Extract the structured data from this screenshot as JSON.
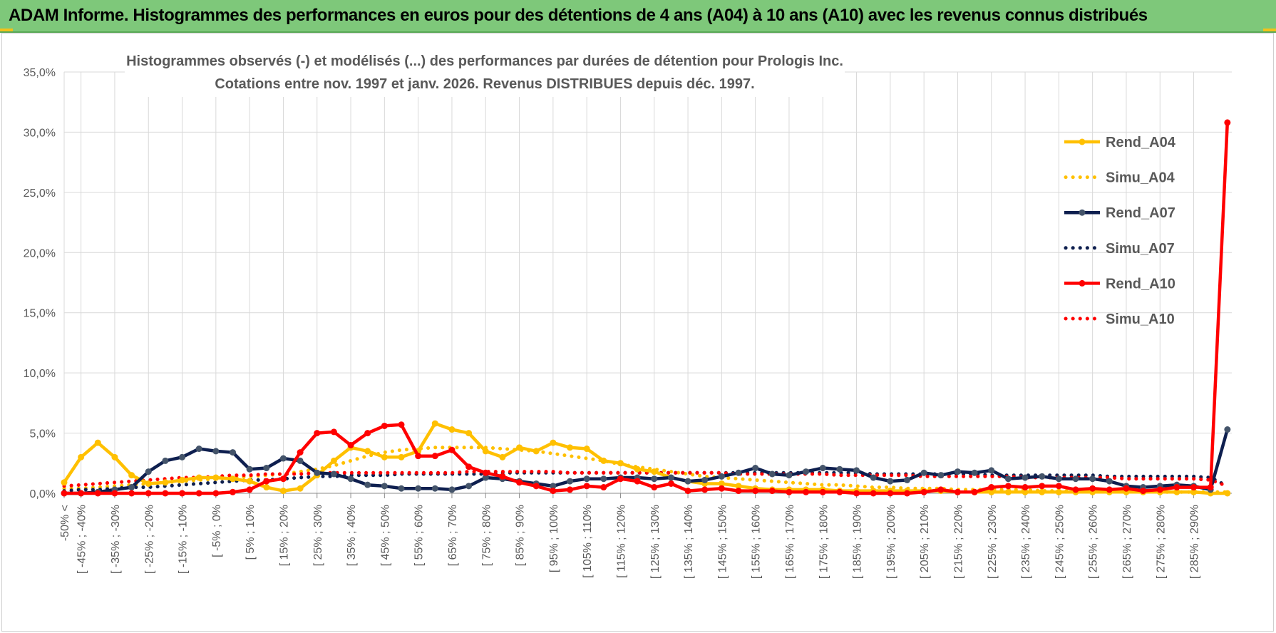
{
  "banner": {
    "title": "ADAM Informe. Histogrammes des performances en euros pour des détentions de 4 ans (A04) à 10 ans (A10) avec les revenus connus distribués"
  },
  "chart_data": {
    "type": "line",
    "title": "Histogrammes observés (-) et modélisés (...) des performances par durées de détention pour Prologis Inc.",
    "subtitle": "Cotations entre nov. 1997 et janv. 2026. Revenus DISTRIBUES depuis déc. 1997.",
    "ylim": [
      0,
      35
    ],
    "yticks": [
      "0,0%",
      "5,0%",
      "10,0%",
      "15,0%",
      "20,0%",
      "25,0%",
      "30,0%",
      "35,0%"
    ],
    "grid": true,
    "legend_position": "right",
    "category_labels": [
      "-50% <",
      "[ -45% ; -40%",
      "[ -35% ; -30%",
      "[ -25% ; -20%",
      "[ -15% ; -10%",
      "[ -5% ; 0%",
      "[ 5% ; 10%",
      "[ 15% ; 20%",
      "[ 25% ; 30%",
      "[ 35% ; 40%",
      "[ 45% ; 50%",
      "[ 55% ; 60%",
      "[ 65% ; 70%",
      "[ 75% ; 80%",
      "[ 85% ; 90%",
      "[ 95% ; 100%",
      "[ 105% ; 110%",
      "[ 115% ; 120%",
      "[ 125% ; 130%",
      "[ 135% ; 140%",
      "[ 145% ; 150%",
      "[ 155% ; 160%",
      "[ 165% ; 170%",
      "[ 175% ; 180%",
      "[ 185% ; 190%",
      "[ 195% ; 200%",
      "[ 205% ; 210%",
      "[ 215% ; 220%",
      "[ 225% ; 230%",
      "[ 235% ; 240%",
      "[ 245% ; 250%",
      "[ 255% ; 260%",
      "[ 265% ; 270%",
      "[ 275% ; 280%",
      "[ 285% ; 290%"
    ],
    "series": [
      {
        "name": "Rend_A04",
        "style": "solid",
        "color": "#ffc000",
        "values": [
          0.9,
          3.0,
          4.2,
          3.0,
          1.5,
          0.8,
          0.9,
          1.1,
          1.3,
          1.3,
          1.2,
          1.0,
          0.5,
          0.2,
          0.4,
          1.5,
          2.7,
          3.8,
          3.5,
          3.0,
          3.0,
          3.5,
          5.8,
          5.3,
          5.0,
          3.5,
          3.0,
          3.8,
          3.5,
          4.2,
          3.8,
          3.7,
          2.7,
          2.5,
          2.0,
          1.8,
          1.3,
          1.0,
          0.8,
          0.8,
          0.6,
          0.4,
          0.3,
          0.3,
          0.3,
          0.3,
          0.2,
          0.2,
          0.2,
          0.2,
          0.2,
          0.2,
          0.2,
          0.1,
          0.1,
          0.1,
          0.1,
          0.1,
          0.1,
          0.1,
          0.1,
          0.1,
          0.1,
          0.1,
          0.1,
          0.1,
          0.1,
          0.1,
          0.0,
          0.0
        ]
      },
      {
        "name": "Simu_A04",
        "style": "dotted",
        "color": "#ffc000",
        "values": [
          0.4,
          0.4,
          0.5,
          0.6,
          0.7,
          0.8,
          0.9,
          1.0,
          1.1,
          1.2,
          1.3,
          1.4,
          1.5,
          1.6,
          1.8,
          2.0,
          2.3,
          2.7,
          3.1,
          3.4,
          3.6,
          3.7,
          3.8,
          3.8,
          3.8,
          3.8,
          3.7,
          3.6,
          3.5,
          3.3,
          3.1,
          2.9,
          2.7,
          2.4,
          2.2,
          2.0,
          1.8,
          1.6,
          1.4,
          1.3,
          1.2,
          1.1,
          1.0,
          0.9,
          0.8,
          0.7,
          0.7,
          0.6,
          0.5,
          0.5,
          0.4,
          0.4,
          0.4,
          0.3,
          0.3,
          0.3,
          0.3,
          0.3,
          0.2,
          0.2,
          0.2,
          0.2,
          0.2,
          0.2,
          0.2,
          0.1,
          0.1,
          0.1,
          0.1,
          0.1
        ]
      },
      {
        "name": "Rend_A07",
        "style": "solid",
        "color": "#0e1f4f",
        "values": [
          0.0,
          0.0,
          0.1,
          0.3,
          0.5,
          1.8,
          2.7,
          3.0,
          3.7,
          3.5,
          3.4,
          2.0,
          2.1,
          2.9,
          2.7,
          1.7,
          1.6,
          1.2,
          0.7,
          0.6,
          0.4,
          0.4,
          0.4,
          0.3,
          0.6,
          1.3,
          1.2,
          1.0,
          0.8,
          0.6,
          1.0,
          1.2,
          1.2,
          1.3,
          1.3,
          1.2,
          1.3,
          1.0,
          1.1,
          1.4,
          1.7,
          2.1,
          1.6,
          1.5,
          1.8,
          2.1,
          2.0,
          1.9,
          1.3,
          1.0,
          1.1,
          1.7,
          1.5,
          1.8,
          1.7,
          1.9,
          1.2,
          1.3,
          1.4,
          1.2,
          1.2,
          1.2,
          1.0,
          0.6,
          0.5,
          0.6,
          0.7,
          0.6,
          0.3,
          5.3
        ]
      },
      {
        "name": "Simu_A07",
        "style": "dotted",
        "color": "#0e1f4f",
        "values": [
          0.2,
          0.3,
          0.3,
          0.4,
          0.5,
          0.5,
          0.6,
          0.7,
          0.8,
          0.9,
          1.0,
          1.1,
          1.1,
          1.2,
          1.3,
          1.4,
          1.4,
          1.5,
          1.5,
          1.5,
          1.6,
          1.6,
          1.6,
          1.6,
          1.6,
          1.6,
          1.7,
          1.7,
          1.7,
          1.7,
          1.7,
          1.7,
          1.7,
          1.7,
          1.7,
          1.7,
          1.7,
          1.7,
          1.7,
          1.7,
          1.7,
          1.7,
          1.7,
          1.7,
          1.7,
          1.7,
          1.7,
          1.7,
          1.6,
          1.6,
          1.6,
          1.6,
          1.6,
          1.6,
          1.6,
          1.5,
          1.5,
          1.5,
          1.5,
          1.5,
          1.5,
          1.5,
          1.4,
          1.4,
          1.4,
          1.4,
          1.4,
          1.4,
          1.3,
          0.6
        ]
      },
      {
        "name": "Rend_A10",
        "style": "solid",
        "color": "#ff0000",
        "values": [
          0.0,
          0.0,
          0.0,
          0.0,
          0.0,
          0.0,
          0.0,
          0.0,
          0.0,
          0.0,
          0.1,
          0.3,
          1.0,
          1.2,
          3.4,
          5.0,
          5.1,
          4.0,
          5.0,
          5.6,
          5.7,
          3.1,
          3.1,
          3.6,
          2.2,
          1.7,
          1.4,
          0.9,
          0.6,
          0.2,
          0.3,
          0.6,
          0.5,
          1.2,
          1.0,
          0.5,
          0.8,
          0.2,
          0.3,
          0.4,
          0.2,
          0.2,
          0.2,
          0.1,
          0.1,
          0.1,
          0.1,
          0.0,
          0.0,
          0.0,
          0.0,
          0.1,
          0.3,
          0.1,
          0.1,
          0.5,
          0.6,
          0.5,
          0.6,
          0.6,
          0.3,
          0.4,
          0.3,
          0.4,
          0.2,
          0.3,
          0.5,
          0.5,
          0.5,
          30.8
        ]
      },
      {
        "name": "Simu_A10",
        "style": "dotted",
        "color": "#ff0000",
        "values": [
          0.6,
          0.7,
          0.8,
          0.9,
          1.0,
          1.1,
          1.2,
          1.3,
          1.3,
          1.4,
          1.5,
          1.5,
          1.6,
          1.6,
          1.6,
          1.7,
          1.7,
          1.7,
          1.7,
          1.7,
          1.7,
          1.7,
          1.7,
          1.7,
          1.8,
          1.8,
          1.8,
          1.8,
          1.8,
          1.8,
          1.7,
          1.7,
          1.7,
          1.7,
          1.7,
          1.7,
          1.7,
          1.7,
          1.7,
          1.7,
          1.6,
          1.6,
          1.6,
          1.6,
          1.6,
          1.6,
          1.5,
          1.5,
          1.5,
          1.5,
          1.5,
          1.4,
          1.4,
          1.4,
          1.4,
          1.4,
          1.4,
          1.3,
          1.3,
          1.3,
          1.3,
          1.3,
          1.3,
          1.2,
          1.2,
          1.2,
          1.2,
          1.2,
          1.1,
          0.6
        ]
      }
    ]
  }
}
